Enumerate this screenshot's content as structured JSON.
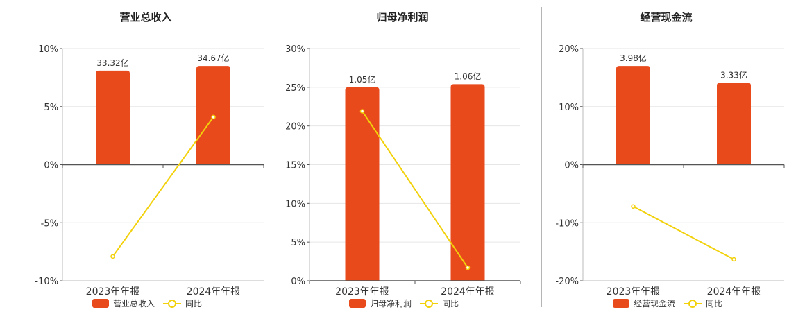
{
  "colors": {
    "bar": "#e84a1c",
    "line": "#f2d10a",
    "grid": "#e6e6e6",
    "axis": "#555555",
    "text": "#333333"
  },
  "chart_data": [
    {
      "type": "bar",
      "title": "营业总收入",
      "categories": [
        "2023年年报",
        "2024年年报"
      ],
      "series": [
        {
          "name": "营业总收入",
          "type": "bar",
          "values": [
            8.1,
            8.5
          ],
          "labels": [
            "33.32亿",
            "34.67亿"
          ]
        },
        {
          "name": "同比",
          "type": "line",
          "values": [
            -7.9,
            4.1
          ]
        }
      ],
      "y_ticks": [
        "10%",
        "5%",
        "0%",
        "-5%",
        "-10%"
      ],
      "ylim": [
        -10,
        10
      ],
      "grid": true,
      "legend": "bottom"
    },
    {
      "type": "bar",
      "title": "归母净利润",
      "categories": [
        "2023年年报",
        "2024年年报"
      ],
      "series": [
        {
          "name": "归母净利润",
          "type": "bar",
          "values": [
            25.0,
            25.4
          ],
          "labels": [
            "1.05亿",
            "1.06亿"
          ]
        },
        {
          "name": "同比",
          "type": "line",
          "values": [
            21.9,
            1.7
          ]
        }
      ],
      "y_ticks": [
        "30%",
        "25%",
        "20%",
        "15%",
        "10%",
        "5%",
        "0%"
      ],
      "ylim": [
        0,
        30
      ],
      "grid": true,
      "legend": "bottom"
    },
    {
      "type": "bar",
      "title": "经营现金流",
      "categories": [
        "2023年年报",
        "2024年年报"
      ],
      "series": [
        {
          "name": "经营现金流",
          "type": "bar",
          "values": [
            17.0,
            14.1
          ],
          "labels": [
            "3.98亿",
            "3.33亿"
          ]
        },
        {
          "name": "同比",
          "type": "line",
          "values": [
            -7.2,
            -16.3
          ]
        }
      ],
      "y_ticks": [
        "20%",
        "10%",
        "0%",
        "-10%",
        "-20%"
      ],
      "ylim": [
        -20,
        20
      ],
      "grid": true,
      "legend": "bottom"
    }
  ]
}
